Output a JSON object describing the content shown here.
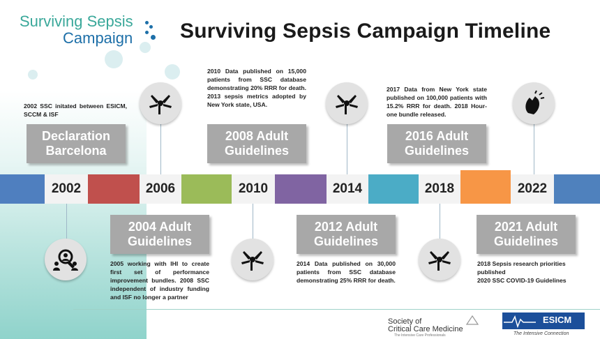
{
  "header": {
    "logo_line1": "Surviving Sepsis",
    "logo_line2": "Campaign",
    "title": "Surviving Sepsis Campaign Timeline"
  },
  "timeline": {
    "years": [
      "2002",
      "2006",
      "2010",
      "2014",
      "2018",
      "2022"
    ],
    "segment_colors": [
      "#4f7fbf",
      "#c0504d",
      "#9bbb59",
      "#8064a2",
      "#4bacc6",
      "#f79646",
      "#4f81bd"
    ]
  },
  "milestones": {
    "declaration": {
      "line1": "Declaration",
      "line2": "Barcelona",
      "note": "2002 SSC initated between ESICM, SCCM & ISF"
    },
    "g2004": {
      "line1": "2004 Adult",
      "line2": "Guidelines",
      "note": "2005 working with IHI to create first set of performance improvement bundles. 2008 SSC independent of industry funding and ISF no longer a partner"
    },
    "g2008": {
      "line1": "2008 Adult",
      "line2": "Guidelines",
      "note": "2010 Data published on 15,000 patients from SSC database demonstrating 20% RRR for death. 2013 sepsis metrics adopted by New York state, USA."
    },
    "g2012": {
      "line1": "2012 Adult",
      "line2": "Guidelines",
      "note": "2014 Data published on 30,000 patients from SSC database demonstrating 25% RRR for death."
    },
    "g2016": {
      "line1": "2016 Adult",
      "line2": "Guidelines",
      "note": "2017 Data from New York state published on 100,000 patients with 15.2% RRR for death. 2018 Hour-one bundle released."
    },
    "g2021": {
      "line1": "2021 Adult",
      "line2": "Guidelines",
      "note_line1": "2018 Sepsis research priorities published",
      "note_line2": "2020 SSC COVID-19 Guidelines"
    }
  },
  "icons": {
    "top": "hands-together-icon",
    "bottom_left": "magnifier-people-icon",
    "clap": "clapping-hands-icon"
  },
  "footer": {
    "sccm_line1": "Society of",
    "sccm_line2": "Critical Care Medicine",
    "sccm_tagline": "The Intensive Care Professionals",
    "esicm_name": "ESICM",
    "esicm_tagline": "The Intensive Connection"
  }
}
